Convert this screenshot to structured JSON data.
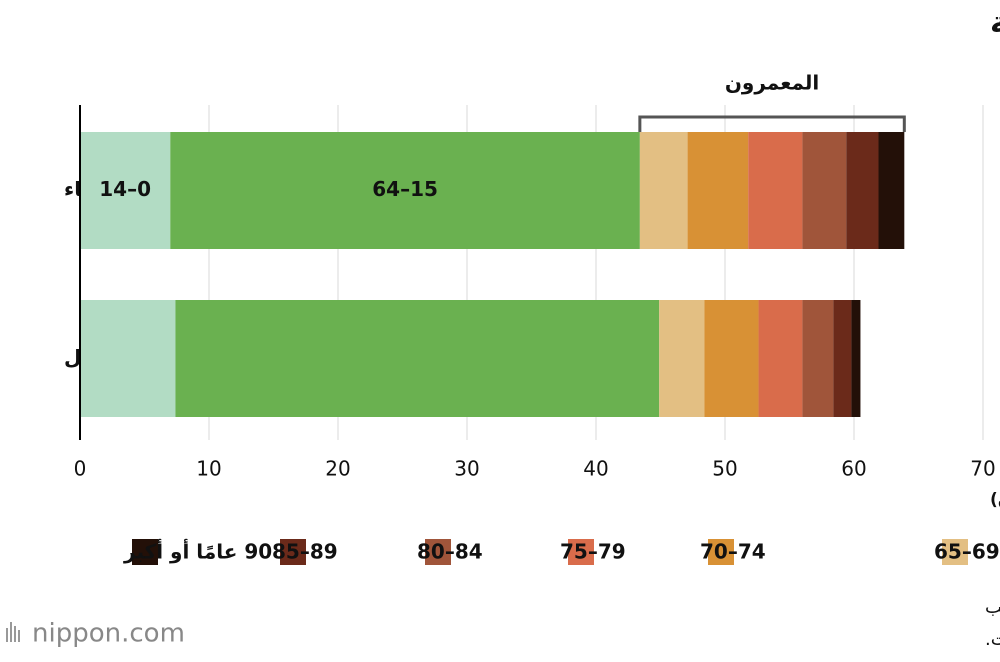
{
  "chart_data": {
    "type": "stacked-barh",
    "title": "سكان اليابان حسب الفئة العمرية",
    "categories": [
      "النساء",
      "الرجال"
    ],
    "series": [
      {
        "name": "14–0",
        "color": "#b2dcc4",
        "legend": false,
        "values": [
          7.0,
          7.4
        ]
      },
      {
        "name": "64–15",
        "color": "#6ab150",
        "legend": false,
        "values": [
          36.4,
          37.5
        ]
      },
      {
        "name": "69–65",
        "color": "#e3bf83",
        "values": [
          3.7,
          3.5
        ]
      },
      {
        "name": "74–70",
        "color": "#d89135",
        "values": [
          4.7,
          4.2
        ]
      },
      {
        "name": "79–75",
        "color": "#d96c4b",
        "values": [
          4.2,
          3.4
        ]
      },
      {
        "name": "84–80",
        "color": "#a0553a",
        "values": [
          3.4,
          2.4
        ]
      },
      {
        "name": "89–85",
        "color": "#6b2a1a",
        "values": [
          2.5,
          1.4
        ]
      },
      {
        "name": "90 عامًا أو أكبر",
        "color": "#231008",
        "values": [
          2.0,
          0.7
        ]
      }
    ],
    "xlim": [
      0,
      70
    ],
    "xticks": [
      0,
      10,
      20,
      30,
      40,
      50,
      60,
      70
    ],
    "x_label": "(مليون)",
    "annotation": "المعمرون",
    "grid": true,
    "source": [
      "تم إعداد البيانات بواسطة Nippon.com بناءً على بيانات من مكتب",
      "الإحصاء بوزارة الشؤون الداخلية والاتصالات."
    ],
    "logo": "nippon.com"
  }
}
